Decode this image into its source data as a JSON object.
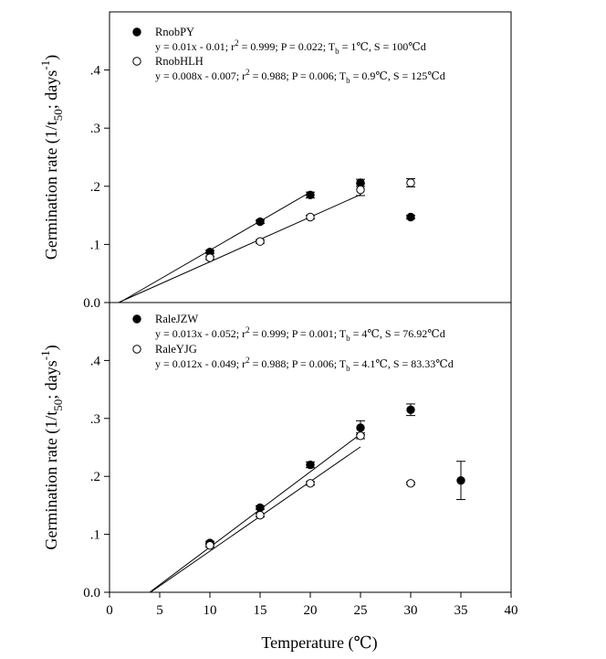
{
  "chart_data": [
    {
      "type": "scatter",
      "panel": "top",
      "ylabel_main": "Germination rate (1/t",
      "ylabel_sub": "50",
      "ylabel_mid": "; days",
      "ylabel_sup": "-1",
      "ylabel_end": ")",
      "xlim": [
        0,
        40
      ],
      "ylim": [
        0,
        0.5
      ],
      "yticks": [
        {
          "v": 0.0,
          "label": "0.0"
        },
        {
          "v": 0.1,
          "label": ".1"
        },
        {
          "v": 0.2,
          "label": ".2"
        },
        {
          "v": 0.3,
          "label": ".3"
        },
        {
          "v": 0.4,
          "label": ".4"
        }
      ],
      "series": [
        {
          "name": "RnobPY",
          "marker": "filled",
          "equation": [
            "y = 0.01x - 0.01; r",
            "2",
            " = 0.999; P = 0.022; T",
            "b",
            " = 1℃, S = 100℃d"
          ],
          "points": [
            {
              "x": 10,
              "y": 0.087,
              "err": 0.003
            },
            {
              "x": 15,
              "y": 0.139,
              "err": 0.003
            },
            {
              "x": 20,
              "y": 0.185,
              "err": 0.005
            },
            {
              "x": 25,
              "y": 0.206,
              "err": 0.006
            },
            {
              "x": 30,
              "y": 0.147,
              "err": 0.003
            }
          ],
          "fit": {
            "slope": 0.01,
            "intercept": -0.01,
            "x_start": 1,
            "x_end": 20
          }
        },
        {
          "name": "RnobHLH",
          "marker": "open",
          "equation": [
            "y = 0.008x - 0.007; r",
            "2",
            " = 0.988; P = 0.006; T",
            "b",
            " = 0.9℃, S = 125℃d"
          ],
          "points": [
            {
              "x": 10,
              "y": 0.077,
              "err": 0.003
            },
            {
              "x": 15,
              "y": 0.105,
              "err": 0.003
            },
            {
              "x": 20,
              "y": 0.147,
              "err": 0.003
            },
            {
              "x": 25,
              "y": 0.194,
              "err": 0.01
            },
            {
              "x": 30,
              "y": 0.206,
              "err": 0.007
            }
          ],
          "fit": {
            "slope": 0.0077,
            "intercept": -0.0069,
            "x_start": 0.9,
            "x_end": 25
          }
        }
      ]
    },
    {
      "type": "scatter",
      "panel": "bottom",
      "xlabel": "Temperature (℃)",
      "ylabel_main": "Germination rate (1/t",
      "ylabel_sub": "50",
      "ylabel_mid": "; days",
      "ylabel_sup": "-1",
      "ylabel_end": ")",
      "xlim": [
        0,
        40
      ],
      "ylim": [
        0,
        0.5
      ],
      "xticks": [
        {
          "v": 0,
          "label": "0"
        },
        {
          "v": 5,
          "label": "5"
        },
        {
          "v": 10,
          "label": "10"
        },
        {
          "v": 15,
          "label": "15"
        },
        {
          "v": 20,
          "label": "20"
        },
        {
          "v": 25,
          "label": "25"
        },
        {
          "v": 30,
          "label": "30"
        },
        {
          "v": 35,
          "label": "35"
        },
        {
          "v": 40,
          "label": "40"
        }
      ],
      "yticks": [
        {
          "v": 0.0,
          "label": "0.0"
        },
        {
          "v": 0.1,
          "label": ".1"
        },
        {
          "v": 0.2,
          "label": ".2"
        },
        {
          "v": 0.3,
          "label": ".3"
        },
        {
          "v": 0.4,
          "label": ".4"
        }
      ],
      "series": [
        {
          "name": "RaleJZW",
          "marker": "filled",
          "equation": [
            "y = 0.013x - 0.052; r",
            "2",
            " = 0.999; P = 0.001; T",
            "b",
            " = 4℃, S = 76.92℃d"
          ],
          "points": [
            {
              "x": 10,
              "y": 0.085,
              "err": 0.003
            },
            {
              "x": 15,
              "y": 0.146,
              "err": 0.003
            },
            {
              "x": 20,
              "y": 0.22,
              "err": 0.005
            },
            {
              "x": 25,
              "y": 0.284,
              "err": 0.012
            },
            {
              "x": 30,
              "y": 0.315,
              "err": 0.01
            },
            {
              "x": 35,
              "y": 0.193,
              "err": 0.033
            }
          ],
          "fit": {
            "slope": 0.013,
            "intercept": -0.052,
            "x_start": 4,
            "x_end": 25
          }
        },
        {
          "name": "RaleYJG",
          "marker": "open",
          "equation": [
            "y = 0.012x - 0.049; r",
            "2",
            " = 0.988; P = 0.006; T",
            "b",
            " = 4.1℃, S = 83.33℃d"
          ],
          "points": [
            {
              "x": 10,
              "y": 0.081,
              "err": 0.003
            },
            {
              "x": 15,
              "y": 0.133,
              "err": 0.003
            },
            {
              "x": 20,
              "y": 0.188,
              "err": 0.003
            },
            {
              "x": 25,
              "y": 0.27,
              "err": 0.005
            },
            {
              "x": 30,
              "y": 0.188,
              "err": 0.002
            }
          ],
          "fit": {
            "slope": 0.012,
            "intercept": -0.049,
            "x_start": 4.1,
            "x_end": 25
          }
        }
      ]
    }
  ]
}
